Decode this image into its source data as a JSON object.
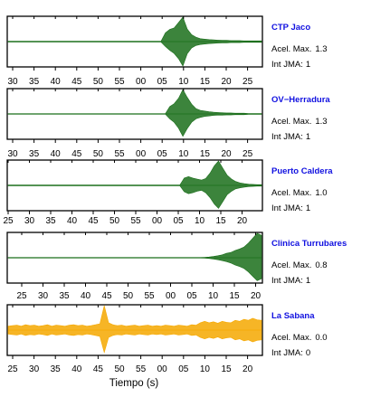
{
  "chart_data": {
    "type": "line",
    "xlabel": "Tiempo (s)",
    "grid": false,
    "panels": [
      {
        "name": "CTP Jaco",
        "accel_label": "Acel. Max.",
        "accel_value": "1.3",
        "int_label": "Int JMA:",
        "int_value": "1",
        "color": "#1a6e1a",
        "tick_labels": [
          "30",
          "35",
          "40",
          "45",
          "50",
          "55",
          "00",
          "05",
          "10",
          "15",
          "20",
          "25"
        ],
        "x": [
          0,
          1,
          2,
          3,
          4,
          5,
          6,
          7,
          8,
          9,
          10,
          11,
          12,
          13,
          14,
          15,
          16,
          17,
          18,
          19,
          20,
          21,
          22,
          23,
          24,
          25,
          26,
          27,
          28,
          29,
          30,
          31,
          32,
          33,
          34,
          35,
          36,
          37,
          38,
          39,
          40,
          41,
          42,
          43,
          44,
          45,
          46,
          47,
          48,
          49,
          50,
          51,
          52,
          53,
          54,
          55,
          56,
          57,
          58
        ],
        "y_upper": [
          0.02,
          0.02,
          0.02,
          0.02,
          0.02,
          0.02,
          0.02,
          0.02,
          0.02,
          0.02,
          0.02,
          0.02,
          0.02,
          0.02,
          0.02,
          0.02,
          0.02,
          0.02,
          0.02,
          0.02,
          0.02,
          0.02,
          0.02,
          0.02,
          0.02,
          0.02,
          0.02,
          0.02,
          0.02,
          0.02,
          0.02,
          0.02,
          0.02,
          0.02,
          0.02,
          0.02,
          0.36,
          0.5,
          0.56,
          0.78,
          1.0,
          0.52,
          0.28,
          0.18,
          0.12,
          0.1,
          0.08,
          0.07,
          0.06,
          0.05,
          0.05,
          0.04,
          0.04,
          0.04,
          0.03,
          0.03,
          0.03,
          0.03,
          0.03
        ],
        "y_lower": [
          -0.02,
          -0.02,
          -0.02,
          -0.02,
          -0.02,
          -0.02,
          -0.02,
          -0.02,
          -0.02,
          -0.02,
          -0.02,
          -0.02,
          -0.02,
          -0.02,
          -0.02,
          -0.02,
          -0.02,
          -0.02,
          -0.02,
          -0.02,
          -0.02,
          -0.02,
          -0.02,
          -0.02,
          -0.02,
          -0.02,
          -0.02,
          -0.02,
          -0.02,
          -0.02,
          -0.02,
          -0.02,
          -0.02,
          -0.02,
          -0.02,
          -0.02,
          -0.2,
          -0.36,
          -0.48,
          -0.7,
          -1.0,
          -0.5,
          -0.26,
          -0.16,
          -0.12,
          -0.1,
          -0.08,
          -0.07,
          -0.06,
          -0.05,
          -0.05,
          -0.04,
          -0.04,
          -0.04,
          -0.03,
          -0.03,
          -0.03,
          -0.03,
          -0.03
        ]
      },
      {
        "name": "OV−Herradura",
        "accel_label": "Acel. Max.",
        "accel_value": "1.3",
        "int_label": "Int JMA:",
        "int_value": "1",
        "color": "#1a6e1a",
        "tick_labels": [
          "30",
          "35",
          "40",
          "45",
          "50",
          "55",
          "00",
          "05",
          "10",
          "15",
          "20",
          "25"
        ],
        "x": [
          0,
          1,
          2,
          3,
          4,
          5,
          6,
          7,
          8,
          9,
          10,
          11,
          12,
          13,
          14,
          15,
          16,
          17,
          18,
          19,
          20,
          21,
          22,
          23,
          24,
          25,
          26,
          27,
          28,
          29,
          30,
          31,
          32,
          33,
          34,
          35,
          36,
          37,
          38,
          39,
          40,
          41,
          42,
          43,
          44,
          45,
          46,
          47,
          48,
          49,
          50,
          51,
          52,
          53,
          54,
          55,
          56,
          57,
          58
        ],
        "y_upper": [
          0.01,
          0.01,
          0.01,
          0.01,
          0.01,
          0.01,
          0.01,
          0.01,
          0.01,
          0.01,
          0.01,
          0.01,
          0.01,
          0.01,
          0.01,
          0.01,
          0.01,
          0.01,
          0.01,
          0.01,
          0.01,
          0.01,
          0.01,
          0.01,
          0.01,
          0.01,
          0.01,
          0.01,
          0.01,
          0.01,
          0.01,
          0.01,
          0.01,
          0.01,
          0.01,
          0.01,
          0.01,
          0.3,
          0.42,
          0.64,
          1.0,
          0.68,
          0.4,
          0.22,
          0.15,
          0.12,
          0.09,
          0.07,
          0.06,
          0.05,
          0.04,
          0.04,
          0.03,
          0.03,
          0.03,
          0.02,
          0.02,
          0.02,
          0.02
        ],
        "y_lower": [
          -0.01,
          -0.01,
          -0.01,
          -0.01,
          -0.01,
          -0.01,
          -0.01,
          -0.01,
          -0.01,
          -0.01,
          -0.01,
          -0.01,
          -0.01,
          -0.01,
          -0.01,
          -0.01,
          -0.01,
          -0.01,
          -0.01,
          -0.01,
          -0.01,
          -0.01,
          -0.01,
          -0.01,
          -0.01,
          -0.01,
          -0.01,
          -0.01,
          -0.01,
          -0.01,
          -0.01,
          -0.01,
          -0.01,
          -0.01,
          -0.01,
          -0.01,
          -0.01,
          -0.2,
          -0.34,
          -0.58,
          -0.92,
          -0.6,
          -0.34,
          -0.2,
          -0.14,
          -0.1,
          -0.08,
          -0.06,
          -0.05,
          -0.05,
          -0.04,
          -0.04,
          -0.03,
          -0.03,
          -0.03,
          -0.02,
          -0.02,
          -0.02,
          -0.02
        ]
      },
      {
        "name": "Puerto Caldera",
        "accel_label": "Acel. Max.",
        "accel_value": "1.0",
        "int_label": "Int JMA:",
        "int_value": "1",
        "color": "#1a6e1a",
        "tick_labels": [
          "25",
          "30",
          "35",
          "40",
          "45",
          "50",
          "55",
          "00",
          "05",
          "10",
          "15",
          "20",
          "25"
        ],
        "x": [
          0,
          1,
          2,
          3,
          4,
          5,
          6,
          7,
          8,
          9,
          10,
          11,
          12,
          13,
          14,
          15,
          16,
          17,
          18,
          19,
          20,
          21,
          22,
          23,
          24,
          25,
          26,
          27,
          28,
          29,
          30,
          31,
          32,
          33,
          34,
          35,
          36,
          37,
          38,
          39,
          40,
          41,
          42,
          43,
          44,
          45,
          46,
          47,
          48,
          49,
          50,
          51,
          52,
          53,
          54,
          55,
          56,
          57,
          58,
          59
        ],
        "y_upper": [
          0.02,
          0.02,
          0.02,
          0.02,
          0.02,
          0.02,
          0.02,
          0.02,
          0.02,
          0.02,
          0.02,
          0.02,
          0.02,
          0.02,
          0.02,
          0.02,
          0.02,
          0.02,
          0.02,
          0.02,
          0.02,
          0.02,
          0.02,
          0.02,
          0.02,
          0.02,
          0.02,
          0.02,
          0.02,
          0.02,
          0.02,
          0.02,
          0.02,
          0.02,
          0.02,
          0.02,
          0.02,
          0.02,
          0.02,
          0.02,
          0.02,
          0.3,
          0.36,
          0.3,
          0.26,
          0.22,
          0.28,
          0.5,
          0.8,
          1.0,
          0.7,
          0.42,
          0.26,
          0.16,
          0.1,
          0.07,
          0.05,
          0.04,
          0.03,
          0.03
        ],
        "y_lower": [
          -0.02,
          -0.02,
          -0.02,
          -0.02,
          -0.02,
          -0.02,
          -0.02,
          -0.02,
          -0.02,
          -0.02,
          -0.02,
          -0.02,
          -0.02,
          -0.02,
          -0.02,
          -0.02,
          -0.02,
          -0.02,
          -0.02,
          -0.02,
          -0.02,
          -0.02,
          -0.02,
          -0.02,
          -0.02,
          -0.02,
          -0.02,
          -0.02,
          -0.02,
          -0.02,
          -0.02,
          -0.02,
          -0.02,
          -0.02,
          -0.02,
          -0.02,
          -0.02,
          -0.02,
          -0.02,
          -0.02,
          -0.02,
          -0.26,
          -0.34,
          -0.3,
          -0.24,
          -0.2,
          -0.3,
          -0.5,
          -0.76,
          -0.94,
          -0.66,
          -0.38,
          -0.24,
          -0.14,
          -0.1,
          -0.07,
          -0.05,
          -0.04,
          -0.03,
          -0.03
        ]
      },
      {
        "name": "Clinica Turrubares",
        "accel_label": "Acel. Max.",
        "accel_value": "0.8",
        "int_label": "Int JMA:",
        "int_value": "1",
        "color": "#1a6e1a",
        "tick_labels": [
          "25",
          "30",
          "35",
          "40",
          "45",
          "50",
          "55",
          "00",
          "05",
          "10",
          "15",
          "20"
        ],
        "x": [
          0,
          1,
          2,
          3,
          4,
          5,
          6,
          7,
          8,
          9,
          10,
          11,
          12,
          13,
          14,
          15,
          16,
          17,
          18,
          19,
          20,
          21,
          22,
          23,
          24,
          25,
          26,
          27,
          28,
          29,
          30,
          31,
          32,
          33,
          34,
          35,
          36,
          37,
          38,
          39,
          40,
          41,
          42,
          43,
          44,
          45,
          46,
          47,
          48,
          49,
          50,
          51,
          52,
          53,
          54,
          55,
          56,
          57,
          58
        ],
        "y_upper": [
          0.01,
          0.01,
          0.01,
          0.01,
          0.01,
          0.01,
          0.01,
          0.01,
          0.01,
          0.01,
          0.01,
          0.01,
          0.01,
          0.01,
          0.01,
          0.01,
          0.01,
          0.01,
          0.01,
          0.01,
          0.01,
          0.01,
          0.01,
          0.01,
          0.01,
          0.01,
          0.01,
          0.01,
          0.01,
          0.01,
          0.01,
          0.01,
          0.01,
          0.01,
          0.01,
          0.01,
          0.01,
          0.01,
          0.01,
          0.01,
          0.01,
          0.01,
          0.01,
          0.01,
          0.01,
          0.02,
          0.03,
          0.05,
          0.08,
          0.12,
          0.18,
          0.22,
          0.3,
          0.36,
          0.44,
          0.6,
          0.8,
          1.0,
          0.92
        ],
        "y_lower": [
          -0.01,
          -0.01,
          -0.01,
          -0.01,
          -0.01,
          -0.01,
          -0.01,
          -0.01,
          -0.01,
          -0.01,
          -0.01,
          -0.01,
          -0.01,
          -0.01,
          -0.01,
          -0.01,
          -0.01,
          -0.01,
          -0.01,
          -0.01,
          -0.01,
          -0.01,
          -0.01,
          -0.01,
          -0.01,
          -0.01,
          -0.01,
          -0.01,
          -0.01,
          -0.01,
          -0.01,
          -0.01,
          -0.01,
          -0.01,
          -0.01,
          -0.01,
          -0.01,
          -0.01,
          -0.01,
          -0.01,
          -0.01,
          -0.01,
          -0.01,
          -0.01,
          -0.01,
          -0.02,
          -0.03,
          -0.05,
          -0.08,
          -0.12,
          -0.16,
          -0.22,
          -0.3,
          -0.36,
          -0.44,
          -0.58,
          -0.76,
          -0.94,
          -0.86
        ]
      },
      {
        "name": "La Sabana",
        "accel_label": "Acel. Max.",
        "accel_value": "0.0",
        "int_label": "Int JMA:",
        "int_value": "0",
        "color": "#f5a800",
        "tick_labels": [
          "25",
          "30",
          "35",
          "40",
          "45",
          "50",
          "55",
          "00",
          "05",
          "10",
          "15",
          "20",
          "25"
        ],
        "x": [
          0,
          1,
          2,
          3,
          4,
          5,
          6,
          7,
          8,
          9,
          10,
          11,
          12,
          13,
          14,
          15,
          16,
          17,
          18,
          19,
          20,
          21,
          22,
          23,
          24,
          25,
          26,
          27,
          28,
          29,
          30,
          31,
          32,
          33,
          34,
          35,
          36,
          37,
          38,
          39,
          40,
          41,
          42,
          43,
          44,
          45,
          46,
          47,
          48,
          49,
          50,
          51,
          52,
          53,
          54,
          55,
          56,
          57,
          58
        ],
        "y_upper": [
          0.16,
          0.18,
          0.2,
          0.16,
          0.22,
          0.18,
          0.2,
          0.16,
          0.18,
          0.22,
          0.16,
          0.2,
          0.18,
          0.16,
          0.2,
          0.22,
          0.18,
          0.2,
          0.16,
          0.18,
          0.22,
          0.26,
          1.0,
          0.3,
          0.22,
          0.18,
          0.2,
          0.16,
          0.18,
          0.2,
          0.16,
          0.18,
          0.2,
          0.16,
          0.18,
          0.16,
          0.2,
          0.18,
          0.16,
          0.2,
          0.18,
          0.16,
          0.22,
          0.2,
          0.3,
          0.36,
          0.3,
          0.34,
          0.28,
          0.36,
          0.32,
          0.3,
          0.4,
          0.36,
          0.44,
          0.4,
          0.48,
          0.42,
          0.4
        ],
        "y_lower": [
          -0.16,
          -0.18,
          -0.2,
          -0.16,
          -0.22,
          -0.18,
          -0.2,
          -0.16,
          -0.18,
          -0.22,
          -0.16,
          -0.2,
          -0.18,
          -0.16,
          -0.2,
          -0.22,
          -0.18,
          -0.2,
          -0.16,
          -0.18,
          -0.22,
          -0.26,
          -0.92,
          -0.3,
          -0.22,
          -0.18,
          -0.2,
          -0.16,
          -0.18,
          -0.2,
          -0.16,
          -0.18,
          -0.2,
          -0.16,
          -0.18,
          -0.16,
          -0.2,
          -0.18,
          -0.16,
          -0.2,
          -0.18,
          -0.16,
          -0.22,
          -0.2,
          -0.3,
          -0.36,
          -0.3,
          -0.34,
          -0.28,
          -0.36,
          -0.32,
          -0.3,
          -0.4,
          -0.36,
          -0.44,
          -0.4,
          -0.48,
          -0.42,
          -0.4
        ]
      }
    ]
  }
}
